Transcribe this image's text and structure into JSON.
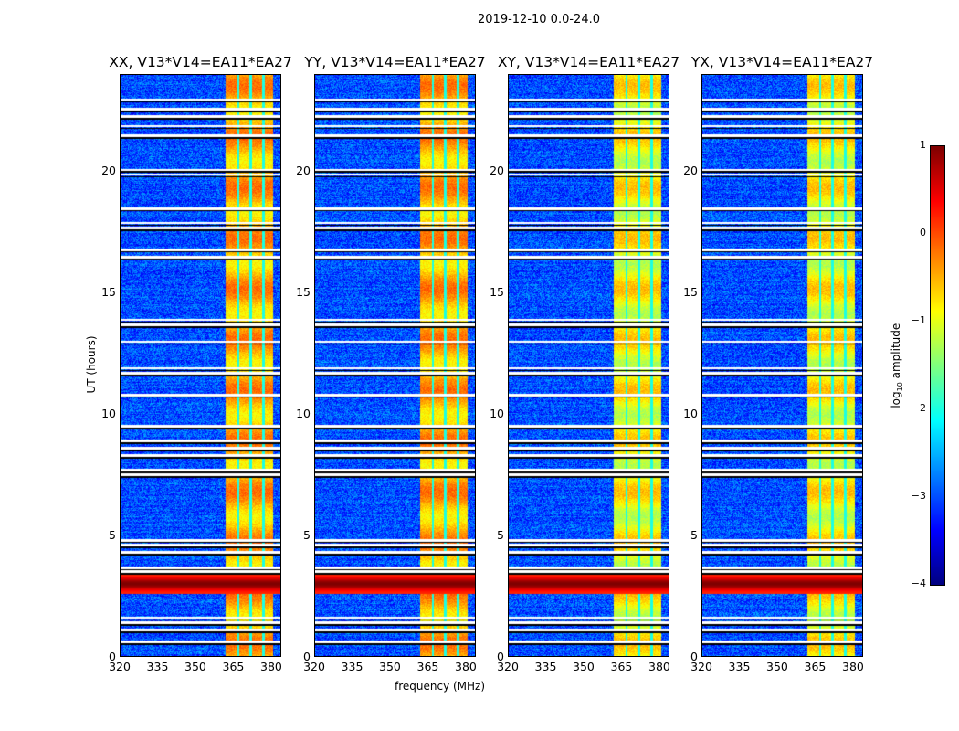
{
  "suptitle": "2019-12-10 0.0-24.0",
  "ylabel": "UT (hours)",
  "xlabel": "frequency (MHz)",
  "colorbar": {
    "label": "log10 amplitude",
    "label_main": "log",
    "label_sub": "10",
    "label_rest": " amplitude",
    "ticks": [
      "1",
      "0",
      "−1",
      "−2",
      "−3",
      "−4"
    ],
    "range": [
      -4,
      1
    ],
    "colormap": "jet"
  },
  "panels": [
    {
      "title": "XX, V13*V14=EA11*EA27"
    },
    {
      "title": "YY, V13*V14=EA11*EA27"
    },
    {
      "title": "XY, V13*V14=EA11*EA27"
    },
    {
      "title": "YX, V13*V14=EA11*EA27"
    }
  ],
  "xticks": [
    "320",
    "335",
    "350",
    "365",
    "380"
  ],
  "yticks": [
    "0",
    "5",
    "10",
    "15",
    "20"
  ],
  "chart_data": {
    "type": "heatmap",
    "title": "2019-12-10 0.0-24.0",
    "xlabel": "frequency (MHz)",
    "ylabel": "UT (hours)",
    "xlim": [
      320,
      384
    ],
    "ylim": [
      0,
      24
    ],
    "xtick_values": [
      320,
      335,
      350,
      365,
      380
    ],
    "ytick_values": [
      0,
      5,
      10,
      15,
      20
    ],
    "color_range_log10": [
      -4,
      1
    ],
    "panels": [
      "XX",
      "YY",
      "XY",
      "YX"
    ],
    "background_level_log10": -3,
    "bright_band_MHz": [
      362,
      381
    ],
    "bright_band_level_log10": -0.6,
    "band_gaps_MHz": [
      367,
      372,
      377
    ],
    "rfi_all_channels_UT": [
      2.6,
      3.4
    ],
    "rfi_level_log10": 0.6,
    "flagged_UT": [
      0.6,
      1.1,
      1.4,
      1.6,
      3.5,
      3.65,
      4.3,
      4.6,
      4.8,
      7.5,
      7.7,
      8.3,
      8.6,
      8.9,
      9.5,
      10.8,
      11.7,
      11.9,
      13.0,
      13.7,
      13.9,
      16.5,
      16.8,
      17.7,
      17.9,
      18.5,
      19.9,
      20.1,
      21.5,
      21.9,
      22.3,
      22.6,
      23.0
    ]
  }
}
